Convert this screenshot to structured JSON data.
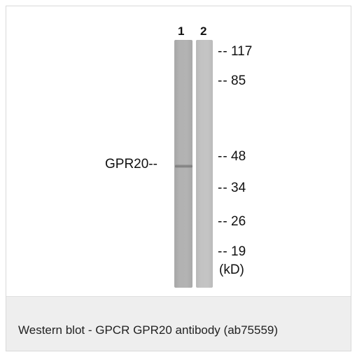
{
  "figure": {
    "lane_labels": [
      "1",
      "2"
    ],
    "protein_label": "GPR20--",
    "markers": [
      {
        "dash": "--",
        "value": "117"
      },
      {
        "dash": "--",
        "value": "85"
      },
      {
        "dash": "--",
        "value": "48"
      },
      {
        "dash": "--",
        "value": "34"
      },
      {
        "dash": "--",
        "value": "26"
      },
      {
        "dash": "--",
        "value": "19"
      }
    ],
    "unit": "(kD)"
  },
  "caption": "Western blot - GPCR GPR20 antibody (ab75559)"
}
